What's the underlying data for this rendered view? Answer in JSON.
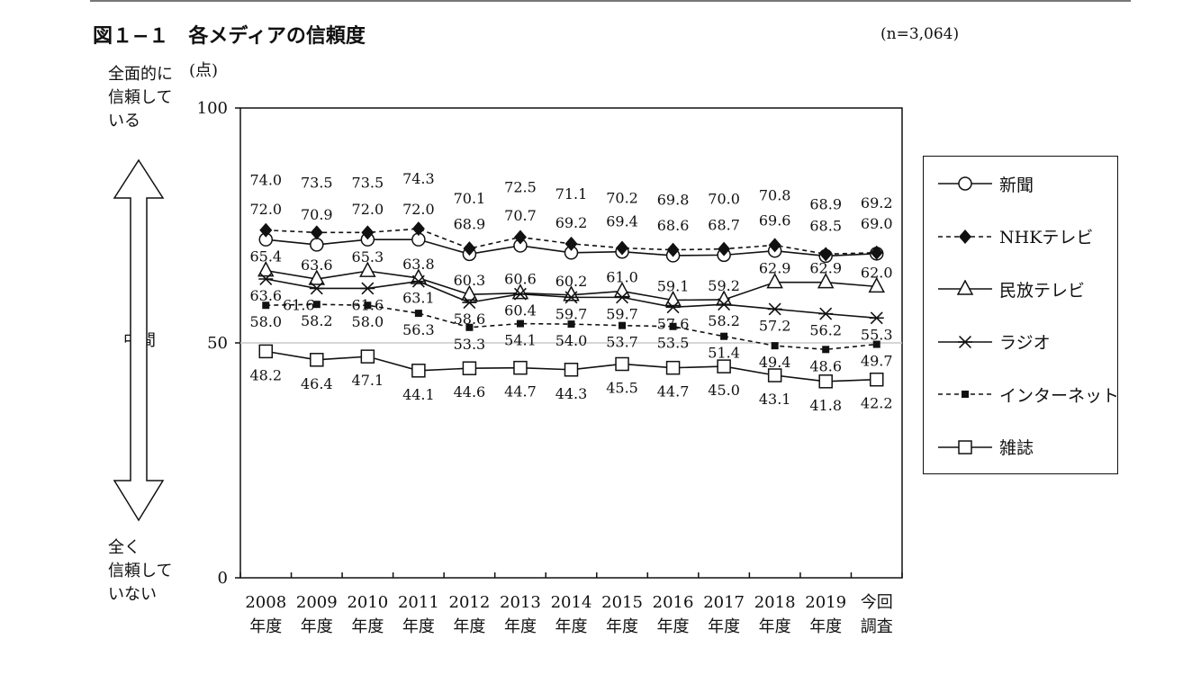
{
  "figure": {
    "title": "図１−１　各メディアの信頼度",
    "sample_note": "(n=3,064)",
    "unit": "(点)",
    "top_caption": [
      "全面的に",
      "信頼して",
      "いる"
    ],
    "mid_caption": "中間",
    "bottom_caption": [
      "全く",
      "信頼して",
      "いない"
    ]
  },
  "chart_data": {
    "type": "line",
    "title": "",
    "xlabel": "",
    "ylabel": "(点)",
    "ylim": [
      0,
      100
    ],
    "yticks": [
      0,
      50,
      100
    ],
    "reference_line": 50,
    "grid": false,
    "legend_position": "right",
    "categories": [
      [
        "2008",
        "年度"
      ],
      [
        "2009",
        "年度"
      ],
      [
        "2010",
        "年度"
      ],
      [
        "2011",
        "年度"
      ],
      [
        "2012",
        "年度"
      ],
      [
        "2013",
        "年度"
      ],
      [
        "2014",
        "年度"
      ],
      [
        "2015",
        "年度"
      ],
      [
        "2016",
        "年度"
      ],
      [
        "2017",
        "年度"
      ],
      [
        "2018",
        "年度"
      ],
      [
        "2019",
        "年度"
      ],
      [
        "今回",
        "調査"
      ]
    ],
    "series": [
      {
        "name": "新聞",
        "marker": "circle-open",
        "line_style": "solid",
        "values": [
          72.0,
          70.9,
          72.0,
          72.0,
          68.9,
          70.7,
          69.2,
          69.4,
          68.6,
          68.7,
          69.6,
          68.5,
          69.0
        ]
      },
      {
        "name": "NHKテレビ",
        "marker": "diamond-filled",
        "line_style": "dashed",
        "values": [
          74.0,
          73.5,
          73.5,
          74.3,
          70.1,
          72.5,
          71.1,
          70.2,
          69.8,
          70.0,
          70.8,
          68.9,
          69.2
        ]
      },
      {
        "name": "民放テレビ",
        "marker": "triangle-open",
        "line_style": "solid",
        "values": [
          65.4,
          63.6,
          65.3,
          63.8,
          60.3,
          60.6,
          60.2,
          61.0,
          59.1,
          59.2,
          62.9,
          62.9,
          62.0
        ]
      },
      {
        "name": "ラジオ",
        "marker": "asterisk",
        "line_style": "solid",
        "values": [
          63.6,
          61.6,
          61.6,
          63.1,
          58.6,
          60.4,
          59.7,
          59.7,
          57.6,
          58.2,
          57.2,
          56.2,
          55.3
        ]
      },
      {
        "name": "インターネット",
        "marker": "square-filled",
        "line_style": "dashed",
        "values": [
          58.0,
          58.2,
          58.0,
          56.3,
          53.3,
          54.1,
          54.0,
          53.7,
          53.5,
          51.4,
          49.4,
          48.6,
          49.7
        ]
      },
      {
        "name": "雑誌",
        "marker": "square-open",
        "line_style": "solid",
        "values": [
          48.2,
          46.4,
          47.1,
          44.1,
          44.6,
          44.7,
          44.3,
          45.5,
          44.7,
          45.0,
          43.1,
          41.8,
          42.2
        ]
      }
    ]
  }
}
